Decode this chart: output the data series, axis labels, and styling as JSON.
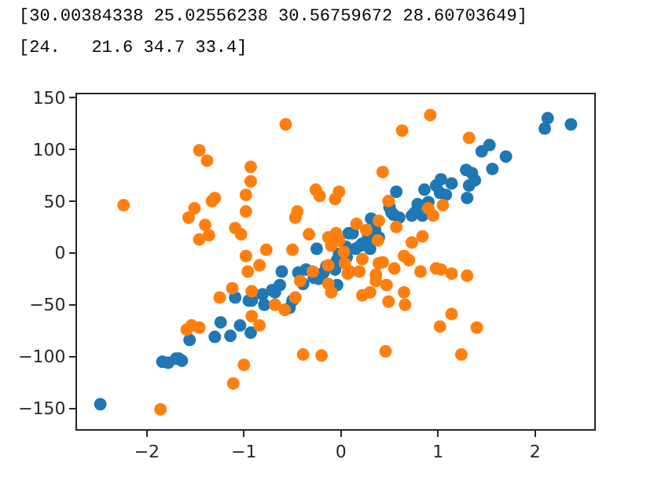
{
  "chart_data": {
    "type": "scatter",
    "annotations": [
      "[30.00384338 25.02556238 30.56759672 28.60703649]",
      "[24.   21.6 34.7 33.4]"
    ],
    "xlim": [
      -2.72,
      2.61
    ],
    "ylim": [
      -170,
      153
    ],
    "xticks": [
      -2,
      -1,
      0,
      1,
      2
    ],
    "yticks": [
      -150,
      -100,
      -50,
      0,
      50,
      100,
      150
    ],
    "marker": "circle",
    "series": [
      {
        "color": "#1f77b4",
        "x": [
          -2.48,
          -1.84,
          -1.78,
          -1.7,
          -1.64,
          -1.67,
          -1.56,
          -1.3,
          -1.14,
          -1.04,
          -1.24,
          -0.93,
          -1.09,
          -0.95,
          -0.92,
          -0.81,
          -0.79,
          -0.71,
          -0.68,
          -0.63,
          -0.61,
          -0.53,
          -0.5,
          -0.44,
          -0.39,
          -0.36,
          -0.28,
          -0.23,
          -0.18,
          -0.04,
          -0.25,
          -0.06,
          -0.02,
          0.05,
          0.08,
          2.13,
          2.1,
          2.37,
          1.53,
          1.45,
          1.7,
          1.56,
          1.29,
          1.35,
          1.38,
          1.32,
          1.3,
          1.14,
          1.03,
          0.98,
          1.08,
          1.02,
          0.86,
          0.9,
          0.79,
          0.57,
          0.84,
          0.73,
          0.76,
          0.5,
          0.54,
          0.6,
          0.52,
          0.31,
          0.35,
          0.39,
          0.28,
          0.22,
          0.15,
          0.12,
          0.06,
          -0.04,
          -0.15,
          0.3,
          0.2
        ],
        "values": [
          -146,
          -105,
          -106,
          -102,
          -104,
          -102,
          -84,
          -81,
          -80,
          -70,
          -67,
          -77,
          -43,
          -46,
          -46,
          -40,
          -50,
          -36,
          -38,
          -31,
          -18,
          -53,
          -46,
          -19,
          -30,
          -16,
          -24,
          -25,
          -19,
          -31,
          4,
          -16,
          -1,
          6,
          19,
          130,
          120,
          124,
          104,
          98,
          93,
          81,
          80,
          77,
          70,
          65,
          53,
          67,
          71,
          65,
          56,
          58,
          61,
          49,
          47,
          59,
          36,
          36,
          39,
          44,
          37,
          34,
          39,
          33,
          22,
          15,
          15,
          9,
          4,
          19,
          -4,
          -7,
          -13,
          4,
          7
        ]
      },
      {
        "color": "#ff7f0e",
        "x": [
          -2.24,
          -1.46,
          -1.38,
          -0.57,
          -0.93,
          -0.93,
          -0.98,
          -0.98,
          -1.57,
          -1.51,
          -1.4,
          -1.46,
          -1.36,
          -1.33,
          -1.3,
          -1.09,
          -1.03,
          -0.77,
          -0.98,
          -0.96,
          -0.84,
          -0.5,
          -0.47,
          -0.45,
          -0.33,
          -0.26,
          -0.22,
          -0.02,
          -0.06,
          -0.05,
          -0.13,
          -0.1,
          -0.02,
          0.03,
          -0.29,
          -0.13,
          0.92,
          0.63,
          1.32,
          0.43,
          0.49,
          0.16,
          0.26,
          0.39,
          0.57,
          0.9,
          0.95,
          1.05,
          0.38,
          0.73,
          0.84,
          0.22,
          0.39,
          0.43,
          0.65,
          0.7,
          0.55,
          0.82,
          0.98,
          1.03,
          1.14,
          1.3,
          0.04,
          0.09,
          0.19,
          0.07,
          0.36,
          0.36,
          -0.13,
          -0.1,
          0.22,
          0.3,
          0.47,
          0.65,
          0.66,
          0.49,
          1.14,
          1.02,
          1.4,
          0.46,
          1.24,
          -0.2,
          -1.12,
          -1.25,
          -0.92,
          -0.68,
          -0.58,
          -0.47,
          -0.42,
          -1.59,
          -1.54,
          -1.46,
          -0.92,
          -0.84,
          -1.0,
          -1.11,
          -0.39,
          -1.86
        ],
        "values": [
          46,
          99,
          89,
          124,
          83,
          69,
          56,
          40,
          34,
          43,
          27,
          13,
          17,
          50,
          53,
          24,
          18,
          3,
          -3,
          -18,
          -12,
          3,
          34,
          40,
          18,
          61,
          55,
          59,
          52,
          19,
          15,
          7,
          12,
          1,
          -18,
          -12,
          133,
          118,
          111,
          78,
          50,
          28,
          22,
          31,
          25,
          43,
          36,
          46,
          12,
          10,
          16,
          -6,
          -10,
          -9,
          -3,
          -7,
          -15,
          -18,
          -15,
          -16,
          -20,
          -22,
          -10,
          -18,
          -18,
          -20,
          -21,
          -27,
          -30,
          -38,
          -41,
          -38,
          -31,
          -38,
          -50,
          -47,
          -59,
          -71,
          -72,
          -95,
          -98,
          -99,
          -34,
          -43,
          -37,
          -50,
          -55,
          -43,
          -27,
          -74,
          -70,
          -72,
          -61,
          -70,
          -108,
          -126,
          -98,
          -151
        ]
      }
    ]
  }
}
